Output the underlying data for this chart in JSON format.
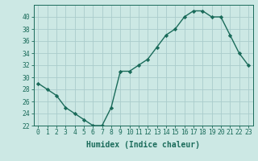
{
  "x": [
    0,
    1,
    2,
    3,
    4,
    5,
    6,
    7,
    8,
    9,
    10,
    11,
    12,
    13,
    14,
    15,
    16,
    17,
    18,
    19,
    20,
    21,
    22,
    23
  ],
  "y": [
    29,
    28,
    27,
    25,
    24,
    23,
    22,
    22,
    25,
    31,
    31,
    32,
    33,
    35,
    37,
    38,
    40,
    41,
    41,
    40,
    40,
    37,
    34,
    32
  ],
  "line_color": "#1a6b5a",
  "marker": "D",
  "marker_size": 2.2,
  "line_width": 1.0,
  "bg_color": "#cce8e4",
  "grid_color": "#aacccc",
  "xlabel": "Humidex (Indice chaleur)",
  "ylim": [
    22,
    42
  ],
  "yticks": [
    22,
    24,
    26,
    28,
    30,
    32,
    34,
    36,
    38,
    40
  ],
  "xlim": [
    -0.5,
    23.5
  ],
  "xticks": [
    0,
    1,
    2,
    3,
    4,
    5,
    6,
    7,
    8,
    9,
    10,
    11,
    12,
    13,
    14,
    15,
    16,
    17,
    18,
    19,
    20,
    21,
    22,
    23
  ],
  "tick_label_fontsize": 5.8,
  "xlabel_fontsize": 7.0,
  "axis_color": "#1a6b5a"
}
